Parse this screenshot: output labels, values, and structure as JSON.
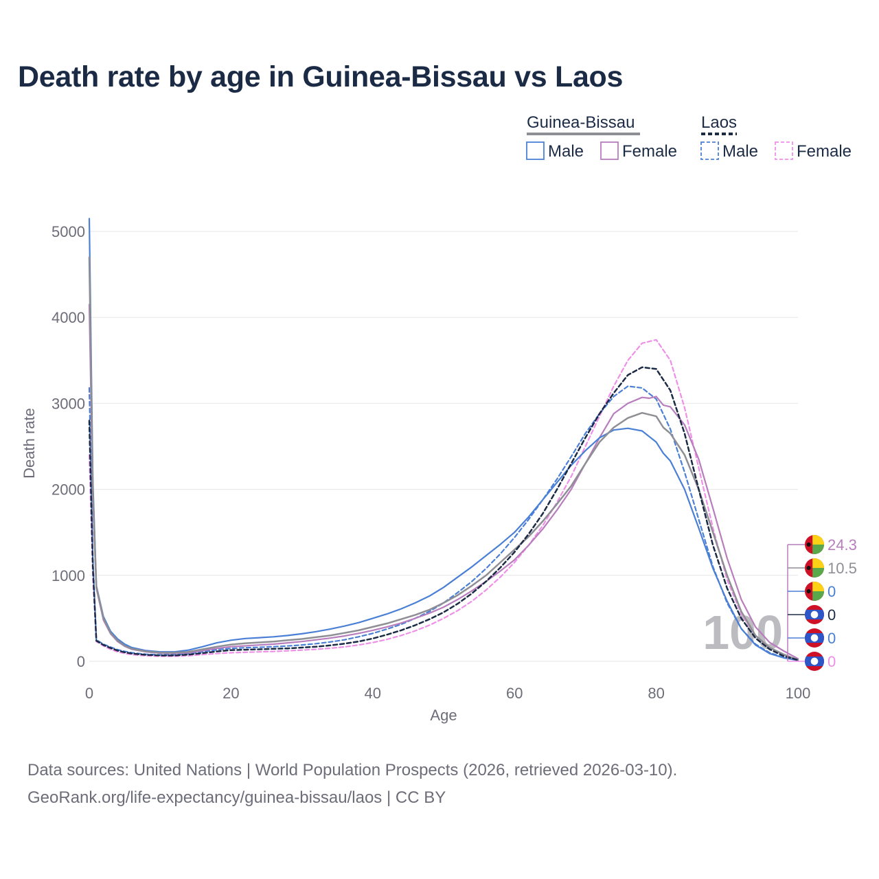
{
  "title": "Death rate by age in Guinea-Bissau vs Laos",
  "legend": {
    "groups": [
      {
        "name": "Guinea-Bissau",
        "dash": "solid",
        "line_color": "#8e8e95",
        "male_label": "Male",
        "female_label": "Female"
      },
      {
        "name": "Laos",
        "dash": "dashed",
        "line_color": "#1c2b45",
        "male_label": "Male",
        "female_label": "Female"
      }
    ]
  },
  "footer": {
    "line1": "Data sources: United Nations | World Population Prospects (2026, retrieved 2026-03-10).",
    "line2": "GeoRank.org/life-expectancy/guinea-bissau/laos | CC BY"
  },
  "watermark": "100",
  "colors": {
    "male": "#4a7fd6",
    "female": "#b77dbd",
    "laos_female": "#ef8fe8",
    "total_gb": "#8e8e95",
    "total_laos": "#1c2b45",
    "grid": "#e6e6e6",
    "title": "#1c2b45"
  },
  "chart_data": {
    "type": "line",
    "title": "Death rate by age in Guinea-Bissau vs Laos",
    "xlabel": "Age",
    "ylabel": "Death rate",
    "xlim": [
      0,
      100
    ],
    "ylim": [
      0,
      5200
    ],
    "xticks": [
      0,
      20,
      40,
      60,
      80,
      100
    ],
    "yticks": [
      0,
      1000,
      2000,
      3000,
      4000,
      5000
    ],
    "grid": true,
    "legend_position": "top-right",
    "series": [
      {
        "key": "gb_total",
        "name": "Guinea-Bissau",
        "country": "Guinea-Bissau",
        "sex": "Total",
        "dash": "solid",
        "color": "#8e8e95",
        "width": 2.5,
        "x": [
          0,
          0.5,
          1,
          2,
          3,
          4,
          5,
          6,
          8,
          10,
          12,
          14,
          16,
          18,
          20,
          22,
          24,
          26,
          28,
          30,
          32,
          34,
          36,
          38,
          40,
          42,
          44,
          46,
          48,
          50,
          52,
          54,
          56,
          58,
          60,
          62,
          64,
          66,
          68,
          70,
          72,
          74,
          76,
          78,
          79,
          80,
          81,
          82,
          84,
          86,
          88,
          90,
          92,
          94,
          96,
          98,
          100
        ],
        "values": [
          4700,
          2000,
          870,
          500,
          330,
          240,
          180,
          145,
          115,
          100,
          100,
          110,
          140,
          170,
          195,
          210,
          220,
          230,
          245,
          260,
          280,
          300,
          330,
          360,
          400,
          440,
          490,
          540,
          600,
          680,
          770,
          880,
          1000,
          1150,
          1300,
          1450,
          1630,
          1830,
          2040,
          2300,
          2550,
          2720,
          2830,
          2890,
          2870,
          2850,
          2720,
          2650,
          2400,
          2000,
          1500,
          1000,
          580,
          300,
          160,
          80,
          15
        ]
      },
      {
        "key": "gb_male",
        "name": "Guinea-Bissau Male",
        "country": "Guinea-Bissau",
        "sex": "Male",
        "dash": "solid",
        "color": "#4a7fd6",
        "width": 2.2,
        "x": [
          0,
          0.5,
          1,
          2,
          3,
          4,
          5,
          6,
          8,
          10,
          12,
          14,
          16,
          18,
          20,
          22,
          24,
          26,
          28,
          30,
          32,
          34,
          36,
          38,
          40,
          42,
          44,
          46,
          48,
          50,
          52,
          54,
          56,
          58,
          60,
          62,
          64,
          66,
          68,
          70,
          72,
          74,
          76,
          78,
          80,
          81,
          82,
          84,
          86,
          88,
          90,
          92,
          94,
          96,
          98,
          100
        ],
        "values": [
          5150,
          2100,
          880,
          520,
          350,
          260,
          200,
          160,
          125,
          110,
          110,
          130,
          170,
          215,
          245,
          265,
          275,
          285,
          300,
          320,
          345,
          375,
          410,
          450,
          500,
          550,
          610,
          680,
          760,
          860,
          980,
          1100,
          1230,
          1360,
          1500,
          1680,
          1880,
          2080,
          2280,
          2450,
          2600,
          2690,
          2710,
          2680,
          2550,
          2420,
          2330,
          2000,
          1550,
          1080,
          700,
          380,
          190,
          90,
          40,
          10
        ]
      },
      {
        "key": "gb_female",
        "name": "Guinea-Bissau Female",
        "country": "Guinea-Bissau",
        "sex": "Female",
        "dash": "solid",
        "color": "#b77dbd",
        "width": 2.2,
        "x": [
          0,
          0.5,
          1,
          2,
          3,
          4,
          5,
          6,
          8,
          10,
          12,
          14,
          16,
          18,
          20,
          22,
          24,
          26,
          28,
          30,
          32,
          34,
          36,
          38,
          40,
          42,
          44,
          46,
          48,
          50,
          52,
          54,
          56,
          58,
          60,
          62,
          64,
          66,
          68,
          70,
          72,
          74,
          76,
          78,
          79,
          80,
          81,
          82,
          84,
          86,
          88,
          90,
          92,
          94,
          96,
          98,
          100
        ],
        "values": [
          4150,
          1900,
          850,
          480,
          320,
          230,
          175,
          140,
          110,
          95,
          92,
          100,
          125,
          150,
          170,
          180,
          190,
          200,
          215,
          230,
          250,
          270,
          295,
          325,
          360,
          400,
          445,
          500,
          560,
          630,
          720,
          820,
          930,
          1050,
          1180,
          1350,
          1540,
          1760,
          2000,
          2300,
          2600,
          2880,
          3000,
          3070,
          3060,
          3080,
          2980,
          2960,
          2750,
          2350,
          1780,
          1200,
          720,
          400,
          220,
          120,
          30
        ]
      },
      {
        "key": "laos_total",
        "name": "Laos",
        "country": "Laos",
        "sex": "Total",
        "dash": "dashed",
        "color": "#1c2b45",
        "width": 2.5,
        "x": [
          0,
          0.5,
          1,
          2,
          3,
          4,
          5,
          6,
          8,
          10,
          12,
          14,
          16,
          18,
          20,
          22,
          24,
          26,
          28,
          30,
          32,
          34,
          36,
          38,
          40,
          42,
          44,
          46,
          48,
          50,
          52,
          54,
          56,
          58,
          60,
          62,
          64,
          66,
          68,
          70,
          72,
          74,
          76,
          78,
          80,
          82,
          84,
          86,
          88,
          90,
          92,
          94,
          96,
          98,
          100
        ],
        "values": [
          2800,
          1100,
          240,
          190,
          155,
          125,
          105,
          90,
          75,
          68,
          68,
          78,
          95,
          115,
          130,
          135,
          140,
          145,
          150,
          160,
          170,
          185,
          205,
          230,
          265,
          310,
          360,
          420,
          490,
          570,
          670,
          790,
          930,
          1090,
          1270,
          1480,
          1720,
          2000,
          2300,
          2600,
          2880,
          3120,
          3330,
          3420,
          3400,
          3150,
          2650,
          2000,
          1350,
          850,
          500,
          270,
          140,
          60,
          15
        ]
      },
      {
        "key": "laos_male",
        "name": "Laos Male",
        "country": "Laos",
        "sex": "Male",
        "dash": "dashed",
        "color": "#4a7fd6",
        "width": 2.2,
        "x": [
          0,
          0.5,
          1,
          2,
          3,
          4,
          5,
          6,
          8,
          10,
          12,
          14,
          16,
          18,
          20,
          22,
          24,
          26,
          28,
          30,
          32,
          34,
          36,
          38,
          40,
          42,
          44,
          46,
          48,
          50,
          52,
          54,
          56,
          58,
          60,
          62,
          64,
          66,
          68,
          70,
          72,
          74,
          76,
          78,
          80,
          82,
          84,
          86,
          88,
          90,
          92,
          94,
          96,
          98,
          100
        ],
        "values": [
          3180,
          1200,
          250,
          200,
          165,
          135,
          115,
          100,
          82,
          75,
          75,
          88,
          110,
          135,
          150,
          158,
          163,
          170,
          178,
          190,
          205,
          225,
          250,
          285,
          325,
          375,
          430,
          500,
          580,
          680,
          800,
          930,
          1080,
          1250,
          1440,
          1650,
          1880,
          2120,
          2380,
          2650,
          2880,
          3080,
          3200,
          3180,
          3050,
          2700,
          2200,
          1650,
          1100,
          680,
          380,
          200,
          100,
          45,
          10
        ]
      },
      {
        "key": "laos_female",
        "name": "Laos Female",
        "country": "Laos",
        "sex": "Female",
        "dash": "dashed",
        "color": "#ef8fe8",
        "width": 2.2,
        "x": [
          0,
          0.5,
          1,
          2,
          3,
          4,
          5,
          6,
          8,
          10,
          12,
          14,
          16,
          18,
          20,
          22,
          24,
          26,
          28,
          30,
          32,
          34,
          36,
          38,
          40,
          42,
          44,
          46,
          48,
          50,
          52,
          54,
          56,
          58,
          60,
          62,
          64,
          66,
          68,
          70,
          72,
          74,
          76,
          78,
          80,
          82,
          84,
          86,
          88,
          90,
          92,
          94,
          96,
          98,
          100
        ],
        "values": [
          2400,
          1000,
          230,
          180,
          140,
          110,
          92,
          78,
          65,
          58,
          58,
          65,
          78,
          90,
          100,
          105,
          110,
          115,
          122,
          130,
          140,
          152,
          168,
          190,
          218,
          255,
          300,
          355,
          420,
          500,
          590,
          700,
          830,
          980,
          1150,
          1350,
          1580,
          1850,
          2150,
          2500,
          2850,
          3200,
          3500,
          3700,
          3740,
          3500,
          2950,
          2250,
          1550,
          950,
          550,
          300,
          160,
          75,
          20
        ]
      }
    ],
    "end_labels": [
      {
        "text": "24.3",
        "color": "#b77dbd",
        "flag": "Guinea-Bissau"
      },
      {
        "text": "10.5",
        "color": "#8e8e95",
        "flag": "Guinea-Bissau"
      },
      {
        "text": "0",
        "color": "#4a7fd6",
        "flag": "Guinea-Bissau"
      },
      {
        "text": "0",
        "color": "#1c2b45",
        "flag": "Laos"
      },
      {
        "text": "0",
        "color": "#4a7fd6",
        "flag": "Laos"
      },
      {
        "text": "0",
        "color": "#ef8fe8",
        "flag": "Laos"
      }
    ]
  }
}
